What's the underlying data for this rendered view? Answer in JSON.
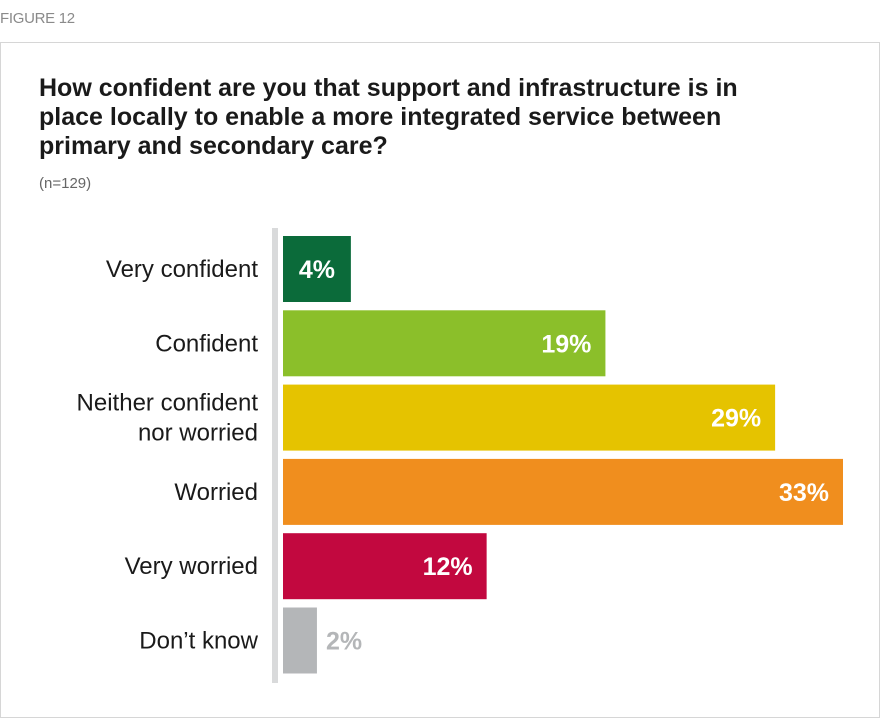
{
  "figure_label": "FIGURE 12",
  "chart_data": {
    "type": "bar",
    "orientation": "horizontal",
    "title": "How confident are you that support and infrastructure is in place locally to enable a more integrated service between primary and secondary care?",
    "note": "(n=129)",
    "categories": [
      [
        "Very confident"
      ],
      [
        "Confident"
      ],
      [
        "Neither confident",
        "nor worried"
      ],
      [
        "Worried"
      ],
      [
        "Very worried"
      ],
      [
        "Don’t know"
      ]
    ],
    "values": [
      4,
      19,
      29,
      33,
      12,
      2
    ],
    "value_labels": [
      "4%",
      "19%",
      "29%",
      "33%",
      "12%",
      "2%"
    ],
    "colors": [
      "#0b6b3a",
      "#8bbf2a",
      "#e5c300",
      "#f08e1e",
      "#c2083f",
      "#b4b6b8"
    ],
    "label_colors": [
      "#ffffff",
      "#ffffff",
      "#ffffff",
      "#ffffff",
      "#ffffff",
      "#b4b6b8"
    ],
    "label_inside": [
      true,
      true,
      true,
      true,
      true,
      false
    ],
    "xlim": [
      0,
      33
    ],
    "grid": false,
    "legend": "none"
  }
}
